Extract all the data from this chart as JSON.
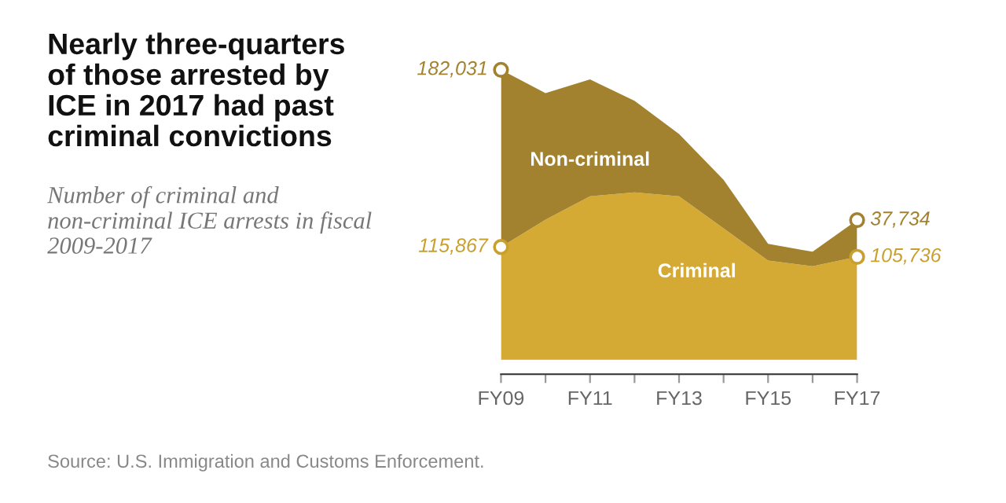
{
  "chart_data": {
    "type": "area",
    "stacked": true,
    "title": "Nearly three-quarters of those arrested by ICE in 2017 had past criminal convictions",
    "subtitle": "Number of criminal and non-criminal ICE arrests in fiscal 2009-2017",
    "annotations": [
      "Source: U.S. Immigration and Customs Enforcement."
    ],
    "categories": [
      "FY09",
      null,
      "FY11",
      null,
      "FY13",
      null,
      "FY15",
      null,
      "FY17"
    ],
    "series": [
      {
        "name": "Criminal",
        "color": "#d4aa34",
        "values": [
          115867,
          144000,
          168000,
          172000,
          168000,
          135000,
          102000,
          96000,
          105736
        ],
        "value_labels": [
          "115,867",
          null,
          null,
          null,
          null,
          null,
          null,
          null,
          "105,736"
        ]
      },
      {
        "name": "Non-criminal",
        "color": "#a3822f",
        "values": [
          182031,
          130000,
          120000,
          94000,
          64000,
          50000,
          17000,
          15000,
          37734
        ],
        "value_labels": [
          "182,031",
          null,
          null,
          null,
          null,
          null,
          null,
          null,
          "37,734"
        ]
      }
    ],
    "tick_labels": "x",
    "grid": false
  }
}
